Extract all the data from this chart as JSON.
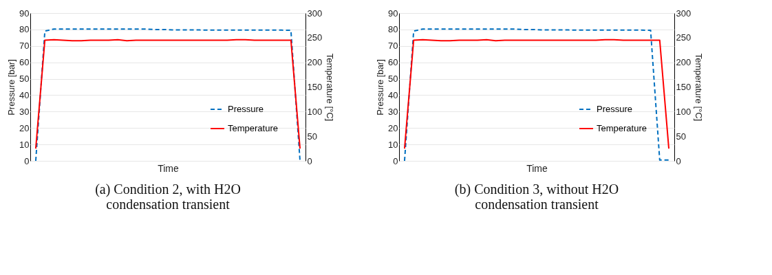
{
  "chart_data": [
    {
      "type": "line",
      "annotations": [
        "(a) Condition 2, with H2O condensation transient"
      ],
      "xlabel": "Time",
      "ylabel": "Pressure [bar]",
      "y2label": "Temperature [°C]",
      "categories": [
        null,
        null,
        null,
        null,
        null,
        null,
        null,
        null,
        null,
        null,
        null,
        null,
        null,
        null,
        null,
        null,
        null,
        null,
        null,
        null,
        null,
        null,
        null,
        null,
        null,
        null,
        null,
        null,
        null,
        null
      ],
      "ylim": [
        0,
        90
      ],
      "yticks": [
        0,
        10,
        20,
        30,
        40,
        50,
        60,
        70,
        80,
        90
      ],
      "y2lim": [
        0,
        300
      ],
      "y2ticks": [
        0,
        50,
        100,
        150,
        200,
        250,
        300
      ],
      "grid": "y",
      "legend": "bottom right",
      "marker": "none",
      "series": [
        {
          "name": "Pressure",
          "color": "#0070c0",
          "line_style": "dashed",
          "values": [
            0,
            79,
            80.3,
            80.3,
            80.3,
            80.3,
            80.3,
            80.3,
            80.3,
            80.3,
            80.3,
            80.3,
            80.3,
            80.0,
            80.0,
            79.7,
            79.7,
            79.7,
            79.7,
            79.6,
            79.6,
            79.6,
            79.6,
            79.6,
            79.6,
            79.6,
            79.6,
            79.6,
            79.5,
            0
          ]
        },
        {
          "name": "Temperature",
          "color": "#ff0000",
          "line_style": "solid",
          "axis": "y2",
          "values": [
            25,
            245,
            246,
            245,
            244,
            244,
            245,
            245,
            245,
            246,
            244,
            245,
            245,
            245,
            245,
            245,
            245,
            245,
            245,
            245,
            245,
            245,
            246,
            246,
            245,
            245,
            245,
            245,
            245,
            25
          ]
        }
      ]
    },
    {
      "type": "line",
      "annotations": [
        "(b) Condition 3, without H2O condensation transient"
      ],
      "xlabel": "Time",
      "ylabel": "Pressure [bar]",
      "y2label": "Temperature [°C]",
      "categories": [
        null,
        null,
        null,
        null,
        null,
        null,
        null,
        null,
        null,
        null,
        null,
        null,
        null,
        null,
        null,
        null,
        null,
        null,
        null,
        null,
        null,
        null,
        null,
        null,
        null,
        null,
        null,
        null,
        null,
        null
      ],
      "ylim": [
        0,
        90
      ],
      "yticks": [
        0,
        10,
        20,
        30,
        40,
        50,
        60,
        70,
        80,
        90
      ],
      "y2lim": [
        0,
        300
      ],
      "y2ticks": [
        0,
        50,
        100,
        150,
        200,
        250,
        300
      ],
      "grid": "y",
      "legend": "bottom right",
      "marker": "none",
      "series": [
        {
          "name": "Pressure",
          "color": "#0070c0",
          "line_style": "dashed",
          "values": [
            0,
            79,
            80.3,
            80.3,
            80.3,
            80.3,
            80.3,
            80.3,
            80.3,
            80.3,
            80.3,
            80.3,
            80.3,
            80.0,
            80.0,
            79.7,
            79.7,
            79.7,
            79.7,
            79.6,
            79.6,
            79.6,
            79.6,
            79.6,
            79.6,
            79.6,
            79.6,
            79.5,
            0.5,
            0.5
          ]
        },
        {
          "name": "Temperature",
          "color": "#ff0000",
          "line_style": "solid",
          "axis": "y2",
          "values": [
            25,
            245,
            246,
            245,
            244,
            244,
            245,
            245,
            245,
            246,
            244,
            245,
            245,
            245,
            245,
            245,
            245,
            245,
            245,
            245,
            245,
            245,
            246,
            246,
            245,
            245,
            245,
            245,
            245,
            25
          ]
        }
      ]
    }
  ]
}
